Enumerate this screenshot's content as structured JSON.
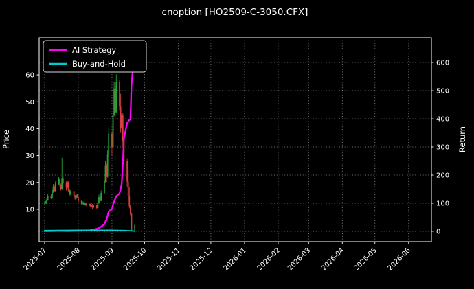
{
  "chart_data": {
    "type": "candlestick",
    "title": "cnoption [HO2509-C-3050.CFX]",
    "background": "#000000",
    "text_color": "#ffffff",
    "grid": "dotted",
    "legend_position": "upper-left",
    "left_axis": {
      "label": "Price",
      "ticks": [
        10,
        20,
        30,
        40,
        50,
        60
      ],
      "lim": [
        -2.0,
        73.8
      ]
    },
    "right_axis": {
      "label": "Return",
      "ticks": [
        0,
        100,
        200,
        300,
        400,
        500,
        600
      ],
      "lim": [
        -36.6,
        687.8
      ]
    },
    "x_axis": {
      "domain": [
        "2025-06-26",
        "2026-06-22"
      ],
      "ticks": [
        {
          "date": "2025-07-01",
          "label": "2025-07"
        },
        {
          "date": "2025-08-01",
          "label": "2025-08"
        },
        {
          "date": "2025-09-01",
          "label": "2025-09"
        },
        {
          "date": "2025-10-01",
          "label": "2025-10"
        },
        {
          "date": "2025-11-01",
          "label": "2025-11"
        },
        {
          "date": "2025-12-01",
          "label": "2025-12"
        },
        {
          "date": "2026-01-01",
          "label": "2026-01"
        },
        {
          "date": "2026-02-01",
          "label": "2026-02"
        },
        {
          "date": "2026-03-01",
          "label": "2026-03"
        },
        {
          "date": "2026-04-01",
          "label": "2026-04"
        },
        {
          "date": "2026-05-01",
          "label": "2026-05"
        },
        {
          "date": "2026-06-01",
          "label": "2026-06"
        }
      ]
    },
    "candle_colors": {
      "up": "#27a337",
      "down": "#d3403a"
    },
    "legend": [
      {
        "label": "AI Strategy",
        "color": "#ff00ff"
      },
      {
        "label": "Buy-and-Hold",
        "color": "#00cccc"
      }
    ],
    "candles": [
      [
        "2025-07-01",
        12.2,
        13.0,
        11.6,
        12.6
      ],
      [
        "2025-07-02",
        12.6,
        13.2,
        12.0,
        12.2
      ],
      [
        "2025-07-03",
        12.2,
        14.0,
        12.0,
        13.6
      ],
      [
        "2025-07-04",
        13.6,
        15.6,
        13.2,
        15.1
      ],
      [
        "2025-07-07",
        15.1,
        15.6,
        13.8,
        14.2
      ],
      [
        "2025-07-08",
        14.2,
        17.2,
        14.0,
        16.6
      ],
      [
        "2025-07-09",
        16.6,
        19.4,
        16.2,
        18.2
      ],
      [
        "2025-07-10",
        18.2,
        18.8,
        16.4,
        16.9
      ],
      [
        "2025-07-11",
        16.9,
        20.4,
        16.6,
        19.6
      ],
      [
        "2025-07-14",
        19.6,
        22.0,
        19.0,
        21.2
      ],
      [
        "2025-07-15",
        21.2,
        21.8,
        18.4,
        19.0
      ],
      [
        "2025-07-16",
        19.0,
        19.6,
        17.0,
        17.6
      ],
      [
        "2025-07-17",
        17.6,
        29.2,
        17.2,
        21.4
      ],
      [
        "2025-07-18",
        21.4,
        22.6,
        19.4,
        19.9
      ],
      [
        "2025-07-21",
        19.9,
        20.4,
        17.0,
        18.1
      ],
      [
        "2025-07-22",
        18.1,
        20.6,
        17.8,
        20.1
      ],
      [
        "2025-07-23",
        20.1,
        20.6,
        16.4,
        17.0
      ],
      [
        "2025-07-24",
        17.0,
        17.6,
        15.2,
        15.6
      ],
      [
        "2025-07-25",
        15.6,
        17.2,
        15.2,
        16.8
      ],
      [
        "2025-07-28",
        16.8,
        17.0,
        14.6,
        15.0
      ],
      [
        "2025-07-29",
        15.0,
        15.4,
        13.6,
        14.0
      ],
      [
        "2025-07-30",
        14.0,
        15.8,
        13.8,
        15.4
      ],
      [
        "2025-07-31",
        15.4,
        15.8,
        14.2,
        14.6
      ],
      [
        "2025-08-01",
        14.6,
        14.9,
        12.8,
        13.1
      ],
      [
        "2025-08-04",
        13.1,
        13.4,
        11.8,
        12.1
      ],
      [
        "2025-08-05",
        12.1,
        12.9,
        11.9,
        12.6
      ],
      [
        "2025-08-06",
        12.6,
        12.9,
        11.5,
        11.8
      ],
      [
        "2025-08-07",
        11.8,
        12.6,
        11.6,
        12.3
      ],
      [
        "2025-08-08",
        12.3,
        12.5,
        11.2,
        11.5
      ],
      [
        "2025-08-11",
        11.5,
        12.3,
        11.3,
        12.0
      ],
      [
        "2025-08-12",
        12.0,
        12.2,
        11.0,
        11.2
      ],
      [
        "2025-08-13",
        11.2,
        12.0,
        11.0,
        11.8
      ],
      [
        "2025-08-14",
        11.8,
        12.0,
        10.2,
        10.8
      ],
      [
        "2025-08-15",
        10.8,
        11.8,
        10.5,
        11.5
      ],
      [
        "2025-08-18",
        11.5,
        11.8,
        10.2,
        10.5
      ],
      [
        "2025-08-19",
        10.5,
        12.8,
        10.3,
        12.5
      ],
      [
        "2025-08-20",
        12.5,
        15.5,
        12.2,
        14.6
      ],
      [
        "2025-08-21",
        14.6,
        15.0,
        12.9,
        13.2
      ],
      [
        "2025-08-22",
        13.2,
        17.0,
        13.0,
        16.1
      ],
      [
        "2025-08-25",
        16.1,
        21.0,
        15.8,
        20.2
      ],
      [
        "2025-08-26",
        20.2,
        28.0,
        19.8,
        26.2
      ],
      [
        "2025-08-27",
        26.2,
        27.0,
        20.2,
        22.1
      ],
      [
        "2025-08-28",
        22.1,
        32.0,
        21.8,
        30.3
      ],
      [
        "2025-08-29",
        30.3,
        40.5,
        29.8,
        38.2
      ],
      [
        "2025-09-01",
        38.2,
        39.0,
        30.2,
        33.1
      ],
      [
        "2025-09-02",
        33.1,
        48.0,
        32.8,
        45.2
      ],
      [
        "2025-09-03",
        45.2,
        57.5,
        44.6,
        55.0
      ],
      [
        "2025-09-04",
        55.0,
        56.0,
        43.2,
        46.1
      ],
      [
        "2025-09-05",
        46.1,
        60.2,
        45.8,
        57.3
      ],
      [
        "2025-09-08",
        57.3,
        58.0,
        46.8,
        48.2
      ],
      [
        "2025-09-09",
        48.2,
        53.0,
        38.4,
        40.2
      ],
      [
        "2025-09-10",
        40.2,
        46.0,
        39.6,
        45.1
      ],
      [
        "2025-09-11",
        45.1,
        45.8,
        33.0,
        35.2
      ],
      [
        "2025-09-12",
        35.2,
        36.0,
        26.2,
        28.1
      ],
      [
        "2025-09-15",
        28.1,
        29.0,
        18.4,
        20.3
      ],
      [
        "2025-09-16",
        20.3,
        24.6,
        13.2,
        15.1
      ],
      [
        "2025-09-17",
        15.1,
        18.2,
        10.4,
        11.2
      ],
      [
        "2025-09-18",
        11.2,
        11.6,
        7.8,
        8.3
      ],
      [
        "2025-09-19",
        8.3,
        8.8,
        1.8,
        2.4
      ],
      [
        "2025-09-22",
        2.4,
        4.6,
        1.2,
        4.2
      ]
    ],
    "series": [
      {
        "name": "AI Strategy",
        "axis": "right",
        "color": "#ff00ff",
        "width": 2.3,
        "points": [
          [
            "2025-07-01",
            0
          ],
          [
            "2025-07-08",
            1
          ],
          [
            "2025-07-15",
            2
          ],
          [
            "2025-07-22",
            1
          ],
          [
            "2025-07-29",
            2
          ],
          [
            "2025-08-05",
            3
          ],
          [
            "2025-08-12",
            4
          ],
          [
            "2025-08-15",
            6
          ],
          [
            "2025-08-19",
            10
          ],
          [
            "2025-08-21",
            14
          ],
          [
            "2025-08-25",
            25
          ],
          [
            "2025-08-26",
            35
          ],
          [
            "2025-08-27",
            40
          ],
          [
            "2025-08-28",
            55
          ],
          [
            "2025-08-29",
            70
          ],
          [
            "2025-09-01",
            80
          ],
          [
            "2025-09-02",
            95
          ],
          [
            "2025-09-03",
            105
          ],
          [
            "2025-09-04",
            115
          ],
          [
            "2025-09-05",
            125
          ],
          [
            "2025-09-08",
            135
          ],
          [
            "2025-09-09",
            150
          ],
          [
            "2025-09-10",
            170
          ],
          [
            "2025-09-11",
            240
          ],
          [
            "2025-09-12",
            330
          ],
          [
            "2025-09-15",
            385
          ],
          [
            "2025-09-16",
            390
          ],
          [
            "2025-09-17",
            395
          ],
          [
            "2025-09-18",
            400
          ],
          [
            "2025-09-19",
            520
          ],
          [
            "2025-09-22",
            655
          ]
        ]
      },
      {
        "name": "Buy-and-Hold",
        "axis": "right",
        "color": "#00cccc",
        "width": 1.9,
        "points": [
          [
            "2025-07-01",
            3
          ],
          [
            "2025-08-01",
            4
          ],
          [
            "2025-09-01",
            4
          ],
          [
            "2025-09-12",
            3
          ],
          [
            "2025-09-18",
            2
          ],
          [
            "2025-09-22",
            1
          ]
        ]
      }
    ]
  }
}
